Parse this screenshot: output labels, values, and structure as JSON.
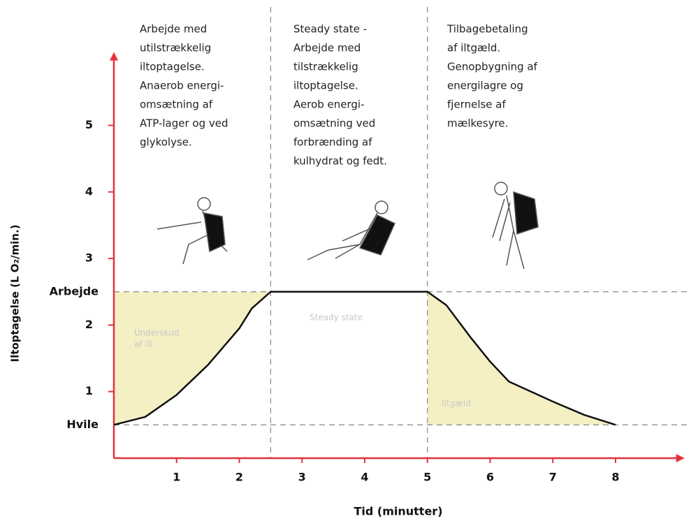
{
  "chart_data": {
    "type": "line",
    "x_label": "Tid (minutter)",
    "y_label": "Iltoptagelse (L O₂/min.)",
    "x": [
      0,
      0.5,
      1,
      1.5,
      2,
      2.2,
      2.5,
      5,
      5.3,
      5.7,
      6,
      6.3,
      7,
      7.5,
      8
    ],
    "series": [
      {
        "color": "#111111",
        "values": [
          0.5,
          0.62,
          0.95,
          1.4,
          1.95,
          2.25,
          2.5,
          2.5,
          2.3,
          1.8,
          1.45,
          1.15,
          0.85,
          0.65,
          0.5
        ]
      }
    ],
    "xlim": [
      0,
      9.1
    ],
    "ylim": [
      0,
      6.1
    ],
    "xticks": [
      1,
      2,
      3,
      4,
      5,
      6,
      7,
      8
    ],
    "yticks": [
      {
        "value": 0.5,
        "label": "Hvile"
      },
      1,
      2,
      {
        "value": 2.5,
        "label": "Arbejde"
      },
      3,
      4,
      5
    ],
    "phase_lines": [
      2.5,
      5
    ],
    "axis_color": "#e8303a",
    "area_color": "#f4f0c4",
    "phases": [
      [
        "Arbejde med",
        "utilstrækkelig",
        "iltoptagelse.",
        "Anaerob energi-",
        "omsætning af",
        "ATP-lager og ved",
        "glykolyse."
      ],
      [
        "Steady state -",
        "Arbejde med",
        "tilstrækkelig",
        "iltoptagelse.",
        "Aerob energi-",
        "omsætning ved",
        "forbrænding af",
        "kulhydrat og fedt."
      ],
      [
        "Tilbagebetaling",
        "af iltgæld.",
        "Genopbygning af",
        "energilagre og",
        "fjernelse af",
        "mælkesyre."
      ]
    ],
    "area_labels": [
      [
        "Underskud",
        "af ilt"
      ],
      [
        "Steady state"
      ],
      [
        "Iltgæld"
      ]
    ]
  }
}
